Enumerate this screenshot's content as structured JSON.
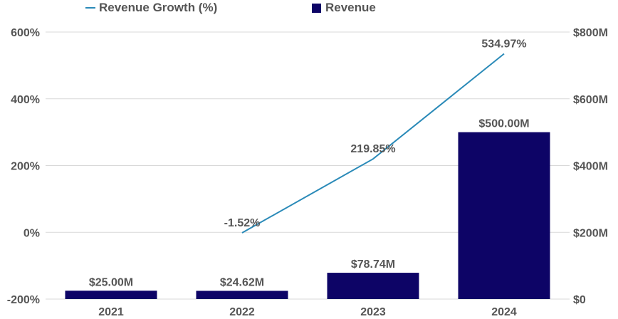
{
  "chart_data": {
    "type": "bar",
    "categories": [
      "2021",
      "2022",
      "2023",
      "2024"
    ],
    "series": [
      {
        "name": "Revenue",
        "kind": "bar",
        "axis": "right",
        "values": [
          25.0,
          24.62,
          78.74,
          500.0
        ],
        "labels": [
          "$25.00M",
          "$24.62M",
          "$78.74M",
          "$500.00M"
        ]
      },
      {
        "name": "Revenue Growth (%)",
        "kind": "line",
        "axis": "left",
        "values": [
          null,
          -1.52,
          219.85,
          534.97
        ],
        "labels": [
          "",
          "-1.52%",
          "219.85%",
          "534.97%"
        ]
      }
    ],
    "y_left": {
      "ticks": [
        "600%",
        "400%",
        "200%",
        "0%",
        "-200%"
      ],
      "tick_values": [
        600,
        400,
        200,
        0,
        -200
      ],
      "ylim": [
        -200,
        600
      ]
    },
    "y_right": {
      "ticks": [
        "$800M",
        "$600M",
        "$400M",
        "$200M",
        "$0"
      ],
      "tick_values": [
        800,
        600,
        400,
        200,
        0
      ],
      "ylim": [
        0,
        800
      ]
    },
    "grid": true,
    "legend_position": "top-left"
  },
  "colors": {
    "bar": "#0d0466",
    "line": "#2a8ab8",
    "text": "#555555",
    "grid": "#d9d9d9"
  },
  "legend": {
    "line_label": "Revenue Growth (%)",
    "bar_label": "Revenue"
  }
}
